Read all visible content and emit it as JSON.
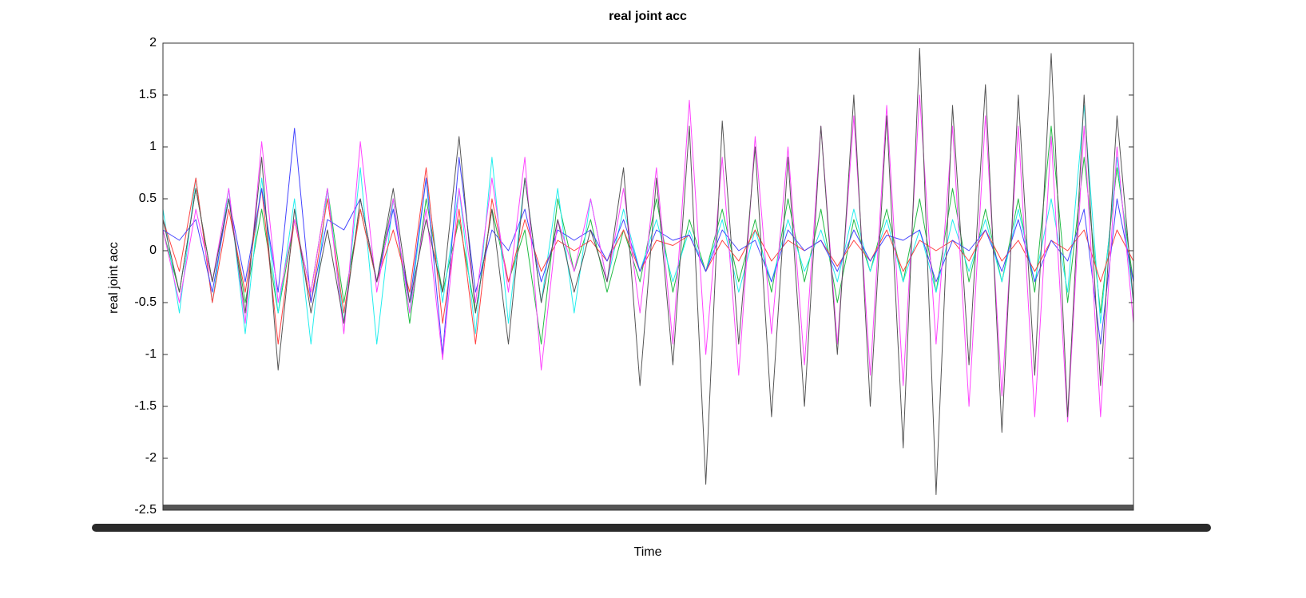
{
  "chart_data": {
    "type": "line",
    "title": "real joint acc",
    "x_label": "Time",
    "y_label": "real joint acc",
    "ylim": [
      -2.5,
      2
    ],
    "yticks": [
      -2.5,
      -2,
      -1.5,
      -1,
      -0.5,
      0,
      0.5,
      1,
      1.5,
      2
    ],
    "grid": false,
    "series": [
      {
        "color": "#22bb44",
        "values": [
          0.2,
          -0.4,
          0.6,
          -0.3,
          0.5,
          -0.5,
          0.4,
          -0.6,
          0.3,
          -0.4,
          0.6,
          -0.5,
          0.4,
          -0.3,
          0.5,
          -0.7,
          0.5,
          -0.4,
          0.3,
          -0.6,
          0.4,
          -0.3,
          0.2,
          -0.9,
          0.5,
          -0.2,
          0.3,
          -0.4,
          0.2,
          -0.3,
          0.5,
          -0.4,
          0.3,
          -0.2,
          0.4,
          -0.3,
          0.3,
          -0.4,
          0.5,
          -0.3,
          0.4,
          -0.5,
          0.3,
          -0.2,
          0.4,
          -0.3,
          0.5,
          -0.4,
          0.6,
          -0.3,
          0.4,
          -0.3,
          0.5,
          -0.4,
          1.2,
          -0.5,
          0.9,
          -0.6,
          0.8,
          -0.3
        ]
      },
      {
        "color": "#22eeee",
        "values": [
          0.4,
          -0.6,
          0.7,
          -0.5,
          0.6,
          -0.8,
          0.7,
          -0.6,
          0.5,
          -0.9,
          0.6,
          -0.7,
          0.8,
          -0.9,
          0.5,
          -0.6,
          0.7,
          -0.5,
          0.6,
          -0.8,
          0.9,
          -0.7,
          0.7,
          -0.5,
          0.6,
          -0.6,
          0.5,
          -0.3,
          0.4,
          -0.2,
          0.3,
          -0.3,
          0.2,
          -0.2,
          0.3,
          -0.4,
          0.2,
          -0.3,
          0.3,
          -0.2,
          0.2,
          -0.3,
          0.4,
          -0.2,
          0.3,
          -0.3,
          0.2,
          -0.4,
          0.3,
          -0.2,
          0.3,
          -0.3,
          0.4,
          -0.3,
          0.5,
          -0.4,
          1.4,
          -0.7,
          0.9,
          -0.5
        ]
      },
      {
        "color": "#ff4040",
        "values": [
          0.3,
          -0.2,
          0.7,
          -0.5,
          0.4,
          -0.4,
          0.6,
          -0.9,
          0.3,
          -0.5,
          0.5,
          -0.6,
          0.4,
          -0.3,
          0.2,
          -0.4,
          0.8,
          -0.7,
          0.4,
          -0.9,
          0.5,
          -0.3,
          0.3,
          -0.2,
          0.1,
          0,
          0.1,
          -0.1,
          0.2,
          -0.2,
          0.1,
          0.05,
          0.15,
          -0.2,
          0.1,
          -0.1,
          0.2,
          -0.1,
          0.1,
          0,
          0.1,
          -0.15,
          0.1,
          -0.1,
          0.2,
          -0.2,
          0.1,
          0,
          0.1,
          -0.1,
          0.2,
          -0.1,
          0.1,
          -0.2,
          0.1,
          0,
          0.2,
          -0.3,
          0.2,
          -0.1
        ]
      },
      {
        "color": "#4444ff",
        "values": [
          0.2,
          0.1,
          0.3,
          -0.4,
          0.5,
          -0.3,
          0.6,
          -0.4,
          1.18,
          -0.5,
          0.3,
          0.2,
          0.5,
          -0.3,
          0.4,
          -0.5,
          0.7,
          -1.0,
          0.9,
          -0.4,
          0.2,
          0,
          0.4,
          -0.3,
          0.2,
          0.1,
          0.2,
          -0.1,
          0.3,
          -0.2,
          0.2,
          0.1,
          0.15,
          -0.2,
          0.2,
          0,
          0.1,
          -0.3,
          0.2,
          0,
          0.1,
          -0.2,
          0.2,
          -0.1,
          0.15,
          0.1,
          0.2,
          -0.3,
          0.1,
          0,
          0.2,
          -0.2,
          0.3,
          -0.3,
          0.1,
          -0.1,
          0.4,
          -0.9,
          0.5,
          -0.3
        ]
      },
      {
        "color": "#ff44ff",
        "values": [
          0.2,
          -0.5,
          0.4,
          -0.3,
          0.6,
          -0.7,
          1.05,
          -0.5,
          0.3,
          -0.4,
          0.6,
          -0.8,
          1.05,
          -0.4,
          0.5,
          -0.6,
          0.4,
          -1.05,
          0.6,
          -0.5,
          0.7,
          -0.4,
          0.9,
          -1.15,
          0.3,
          -0.2,
          0.5,
          -0.3,
          0.6,
          -0.6,
          0.8,
          -0.9,
          1.45,
          -1.0,
          0.9,
          -1.2,
          1.1,
          -0.8,
          1.0,
          -1.1,
          1.2,
          -0.9,
          1.3,
          -1.2,
          1.4,
          -1.3,
          1.5,
          -0.9,
          1.2,
          -1.5,
          1.3,
          -1.4,
          1.2,
          -1.6,
          1.1,
          -1.65,
          1.2,
          -1.6,
          1.0,
          -0.7
        ]
      },
      {
        "color": "#555555",
        "values": [
          0.3,
          -0.4,
          0.6,
          -0.3,
          0.5,
          -0.6,
          0.9,
          -1.15,
          0.4,
          -0.6,
          0.2,
          -0.7,
          0.5,
          -0.3,
          0.6,
          -0.5,
          0.3,
          -0.4,
          1.1,
          -0.6,
          0.4,
          -0.9,
          0.7,
          -0.5,
          0.3,
          -0.4,
          0.2,
          -0.3,
          0.8,
          -1.3,
          0.7,
          -1.1,
          1.2,
          -2.25,
          1.25,
          -0.9,
          1.0,
          -1.6,
          0.9,
          -1.5,
          1.2,
          -1.0,
          1.5,
          -1.5,
          1.3,
          -1.9,
          1.95,
          -2.35,
          1.4,
          -1.1,
          1.6,
          -1.75,
          1.5,
          -1.2,
          1.9,
          -1.6,
          1.5,
          -1.3,
          1.3,
          -0.5
        ]
      }
    ]
  }
}
